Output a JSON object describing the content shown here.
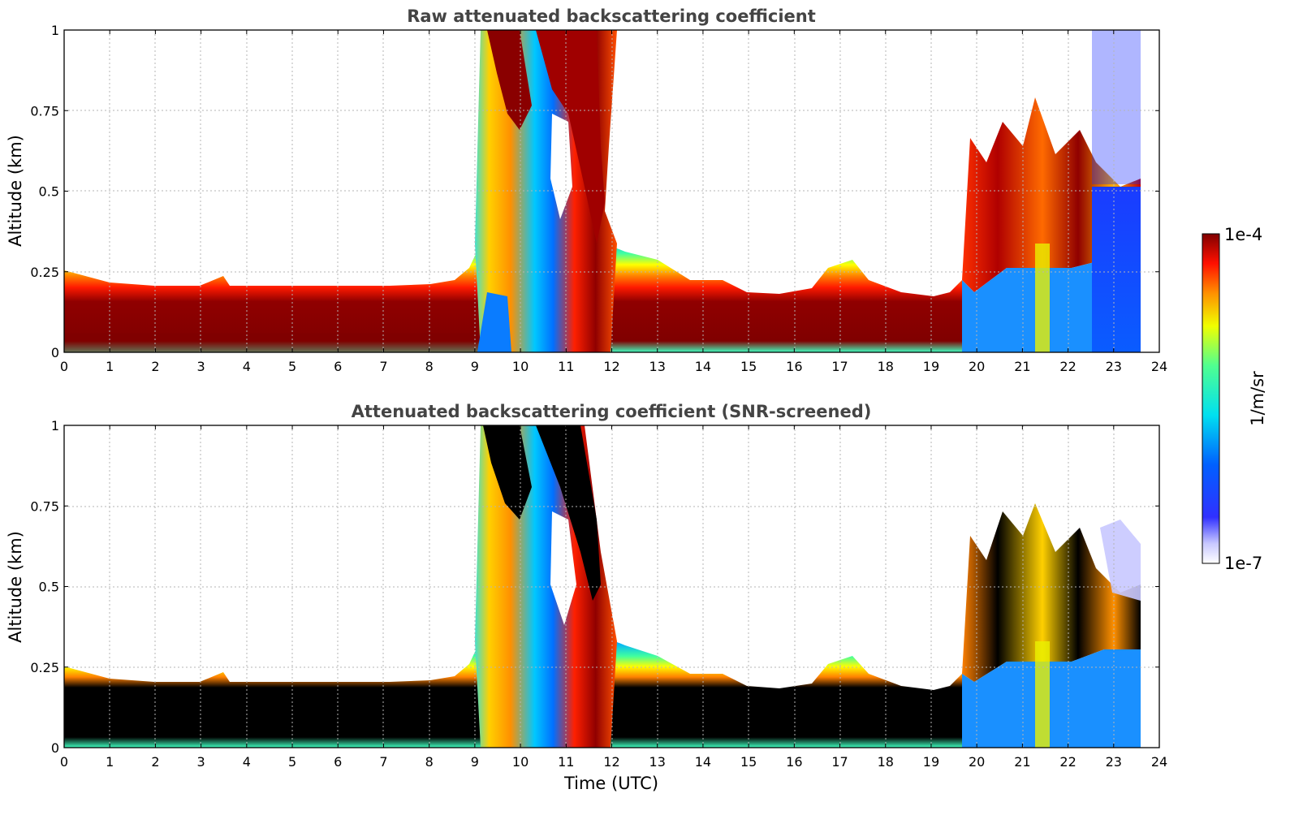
{
  "chart_data": [
    {
      "type": "heatmap",
      "title": "Raw attenuated backscattering coefficient",
      "xlabel": "",
      "ylabel": "Altitude (km)",
      "xlim": [
        0,
        24
      ],
      "ylim": [
        0,
        1
      ],
      "x_ticks": [
        "0",
        "1",
        "2",
        "3",
        "4",
        "5",
        "6",
        "7",
        "8",
        "9",
        "10",
        "11",
        "12",
        "13",
        "14",
        "15",
        "16",
        "17",
        "18",
        "19",
        "20",
        "21",
        "22",
        "23",
        "24"
      ],
      "y_ticks": [
        "0",
        "0.25",
        "0.5",
        "0.75",
        "1"
      ],
      "grid": true,
      "screened": false,
      "aerosol_layer_top_km": {
        "time_utc": [
          0,
          1,
          2,
          3,
          3.5,
          4,
          5,
          6,
          7,
          8,
          8.5,
          9,
          10,
          11,
          11.5,
          12,
          12.5,
          13,
          13.5,
          14,
          14.5,
          15,
          15.5,
          16,
          16.5,
          17,
          17.5,
          18,
          18.5,
          19,
          19.5,
          20,
          21,
          22,
          23,
          23.7
        ],
        "altitude_km": [
          0.25,
          0.2,
          0.19,
          0.19,
          0.23,
          0.19,
          0.19,
          0.19,
          0.19,
          0.2,
          0.22,
          0.3,
          0.7,
          1.0,
          0.8,
          0.3,
          0.28,
          0.25,
          0.2,
          0.22,
          0.24,
          0.2,
          0.18,
          0.18,
          0.22,
          0.26,
          0.28,
          0.22,
          0.2,
          0.2,
          0.22,
          0.6,
          0.62,
          0.6,
          0.55,
          0.5
        ]
      }
    },
    {
      "type": "heatmap",
      "title": "Attenuated backscattering coefficient (SNR-screened)",
      "xlabel": "Time (UTC)",
      "ylabel": "Altitude (km)",
      "xlim": [
        0,
        24
      ],
      "ylim": [
        0,
        1
      ],
      "x_ticks": [
        "0",
        "1",
        "2",
        "3",
        "4",
        "5",
        "6",
        "7",
        "8",
        "9",
        "10",
        "11",
        "12",
        "13",
        "14",
        "15",
        "16",
        "17",
        "18",
        "19",
        "20",
        "21",
        "22",
        "23",
        "24"
      ],
      "y_ticks": [
        "0",
        "0.25",
        "0.5",
        "0.75",
        "1"
      ],
      "grid": true,
      "screened": true
    }
  ],
  "colorbar": {
    "label": "1/m/sr",
    "max_label": "1e-4",
    "min_label": "1e-7",
    "scale": "log",
    "range": [
      1e-07,
      0.0001
    ]
  }
}
